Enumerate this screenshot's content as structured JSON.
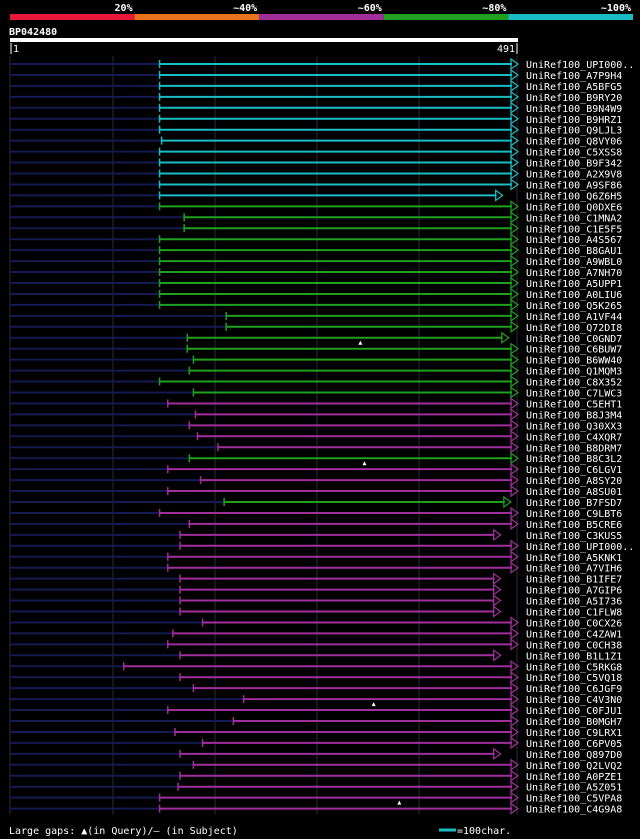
{
  "chart_data": {
    "type": "alignment-overview",
    "query_name": "BP042480",
    "query_start_label": "1",
    "query_end_label": "491",
    "query_length": 491,
    "identity_legend": [
      {
        "label": "20%",
        "color": "#e8173c"
      },
      {
        "label": "~40%",
        "color": "#e8731c"
      },
      {
        "label": "~60%",
        "color": "#a02f9c"
      },
      {
        "label": "~80%",
        "color": "#1fa01f"
      },
      {
        "label": "~100%",
        "color": "#1bbcc4"
      }
    ],
    "footer_left": "Large gaps: ▲(in Query)/– (in Subject)",
    "footer_right": "=100char.",
    "hits": [
      {
        "name": "UniRef100_UPI000..",
        "start": 147,
        "end": 491,
        "identity": "~100%",
        "marker": null
      },
      {
        "name": "UniRef100_A7P9H4",
        "start": 147,
        "end": 491,
        "identity": "~100%",
        "marker": null
      },
      {
        "name": "UniRef100_A5BFG5",
        "start": 147,
        "end": 491,
        "identity": "~100%",
        "marker": null
      },
      {
        "name": "UniRef100_B9RY20",
        "start": 147,
        "end": 491,
        "identity": "~100%",
        "marker": null
      },
      {
        "name": "UniRef100_B9N4W9",
        "start": 147,
        "end": 491,
        "identity": "~100%",
        "marker": null
      },
      {
        "name": "UniRef100_B9HRZ1",
        "start": 147,
        "end": 491,
        "identity": "~100%",
        "marker": null
      },
      {
        "name": "UniRef100_Q9LJL3",
        "start": 147,
        "end": 491,
        "identity": "~100%",
        "marker": null
      },
      {
        "name": "UniRef100_Q8VY06",
        "start": 149,
        "end": 491,
        "identity": "~100%",
        "marker": null
      },
      {
        "name": "UniRef100_C5XSS8",
        "start": 147,
        "end": 491,
        "identity": "~100%",
        "marker": null
      },
      {
        "name": "UniRef100_B9F342",
        "start": 147,
        "end": 491,
        "identity": "~100%",
        "marker": null
      },
      {
        "name": "UniRef100_A2X9V8",
        "start": 147,
        "end": 491,
        "identity": "~100%",
        "marker": null
      },
      {
        "name": "UniRef100_A9SF86",
        "start": 147,
        "end": 491,
        "identity": "~100%",
        "marker": null
      },
      {
        "name": "UniRef100_Q6Z6H5",
        "start": 147,
        "end": 476,
        "identity": "~100%",
        "marker": null
      },
      {
        "name": "UniRef100_Q0DXE6",
        "start": 147,
        "end": 491,
        "identity": "~80%",
        "marker": null
      },
      {
        "name": "UniRef100_C1MNA2",
        "start": 171,
        "end": 491,
        "identity": "~80%",
        "marker": null
      },
      {
        "name": "UniRef100_C1E5F5",
        "start": 171,
        "end": 491,
        "identity": "~80%",
        "marker": null
      },
      {
        "name": "UniRef100_A4S567",
        "start": 147,
        "end": 491,
        "identity": "~80%",
        "marker": null
      },
      {
        "name": "UniRef100_B8GAU1",
        "start": 147,
        "end": 491,
        "identity": "~80%",
        "marker": null
      },
      {
        "name": "UniRef100_A9WBL0",
        "start": 147,
        "end": 491,
        "identity": "~80%",
        "marker": null
      },
      {
        "name": "UniRef100_A7NH70",
        "start": 147,
        "end": 491,
        "identity": "~80%",
        "marker": null
      },
      {
        "name": "UniRef100_A5UPP1",
        "start": 147,
        "end": 491,
        "identity": "~80%",
        "marker": null
      },
      {
        "name": "UniRef100_A0LIU6",
        "start": 147,
        "end": 491,
        "identity": "~80%",
        "marker": null
      },
      {
        "name": "UniRef100_Q5K265",
        "start": 147,
        "end": 491,
        "identity": "~80%",
        "marker": null
      },
      {
        "name": "UniRef100_A1VF44",
        "start": 212,
        "end": 491,
        "identity": "~80%",
        "marker": null
      },
      {
        "name": "UniRef100_Q72DI8",
        "start": 212,
        "end": 491,
        "identity": "~80%",
        "marker": null
      },
      {
        "name": "UniRef100_C0GND7",
        "start": 174,
        "end": 482,
        "identity": "~80%",
        "marker": "query",
        "marker_pos": 343
      },
      {
        "name": "UniRef100_C6BUW7",
        "start": 174,
        "end": 491,
        "identity": "~80%",
        "marker": null
      },
      {
        "name": "UniRef100_B6WW40",
        "start": 180,
        "end": 491,
        "identity": "~80%",
        "marker": null
      },
      {
        "name": "UniRef100_Q1MQM3",
        "start": 176,
        "end": 491,
        "identity": "~80%",
        "marker": null
      },
      {
        "name": "UniRef100_C8X352",
        "start": 147,
        "end": 491,
        "identity": "~80%",
        "marker": null
      },
      {
        "name": "UniRef100_C7LWC3",
        "start": 180,
        "end": 491,
        "identity": "~80%",
        "marker": null
      },
      {
        "name": "UniRef100_C5EHT1",
        "start": 155,
        "end": 491,
        "identity": "~60%",
        "marker": null
      },
      {
        "name": "UniRef100_B8J3M4",
        "start": 182,
        "end": 491,
        "identity": "~60%",
        "marker": null
      },
      {
        "name": "UniRef100_Q30XX3",
        "start": 176,
        "end": 491,
        "identity": "~60%",
        "marker": null
      },
      {
        "name": "UniRef100_C4XQR7",
        "start": 184,
        "end": 491,
        "identity": "~60%",
        "marker": null
      },
      {
        "name": "UniRef100_B8DRM7",
        "start": 204,
        "end": 491,
        "identity": "~60%",
        "marker": null
      },
      {
        "name": "UniRef100_B8C3L2",
        "start": 176,
        "end": 491,
        "identity": "~80%",
        "marker": "query",
        "marker_pos": 347
      },
      {
        "name": "UniRef100_C6LGV1",
        "start": 155,
        "end": 491,
        "identity": "~60%",
        "marker": null
      },
      {
        "name": "UniRef100_A8SY20",
        "start": 187,
        "end": 491,
        "identity": "~60%",
        "marker": null
      },
      {
        "name": "UniRef100_A8SU01",
        "start": 155,
        "end": 491,
        "identity": "~60%",
        "marker": null
      },
      {
        "name": "UniRef100_B7FSD7",
        "start": 210,
        "end": 484,
        "identity": "~80%",
        "marker": null
      },
      {
        "name": "UniRef100_C9LBT6",
        "start": 147,
        "end": 491,
        "identity": "~60%",
        "marker": null
      },
      {
        "name": "UniRef100_B5CRE6",
        "start": 176,
        "end": 491,
        "identity": "~60%",
        "marker": null
      },
      {
        "name": "UniRef100_C3KUS5",
        "start": 167,
        "end": 474,
        "identity": "~60%",
        "marker": null
      },
      {
        "name": "UniRef100_UPI000..",
        "start": 167,
        "end": 491,
        "identity": "~60%",
        "marker": null
      },
      {
        "name": "UniRef100_A5KNK1",
        "start": 155,
        "end": 491,
        "identity": "~60%",
        "marker": null
      },
      {
        "name": "UniRef100_A7VIH6",
        "start": 155,
        "end": 491,
        "identity": "~60%",
        "marker": null
      },
      {
        "name": "UniRef100_B1IFE7",
        "start": 167,
        "end": 474,
        "identity": "~60%",
        "marker": null
      },
      {
        "name": "UniRef100_A7GIP6",
        "start": 167,
        "end": 474,
        "identity": "~60%",
        "marker": null
      },
      {
        "name": "UniRef100_A5I736",
        "start": 167,
        "end": 474,
        "identity": "~60%",
        "marker": null
      },
      {
        "name": "UniRef100_C1FLW8",
        "start": 167,
        "end": 474,
        "identity": "~60%",
        "marker": null
      },
      {
        "name": "UniRef100_C0CX26",
        "start": 189,
        "end": 491,
        "identity": "~60%",
        "marker": null
      },
      {
        "name": "UniRef100_C4ZAW1",
        "start": 160,
        "end": 491,
        "identity": "~60%",
        "marker": null
      },
      {
        "name": "UniRef100_C0CH38",
        "start": 155,
        "end": 491,
        "identity": "~60%",
        "marker": null
      },
      {
        "name": "UniRef100_B1L1Z1",
        "start": 167,
        "end": 474,
        "identity": "~60%",
        "marker": null
      },
      {
        "name": "UniRef100_C5RKG8",
        "start": 112,
        "end": 491,
        "identity": "~60%",
        "marker": null
      },
      {
        "name": "UniRef100_C5VQ18",
        "start": 167,
        "end": 491,
        "identity": "~60%",
        "marker": null
      },
      {
        "name": "UniRef100_C6JGF9",
        "start": 180,
        "end": 491,
        "identity": "~60%",
        "marker": null
      },
      {
        "name": "UniRef100_C4V3N0",
        "start": 229,
        "end": 491,
        "identity": "~60%",
        "marker": "query",
        "marker_pos": 356
      },
      {
        "name": "UniRef100_C0FJU1",
        "start": 155,
        "end": 491,
        "identity": "~60%",
        "marker": null
      },
      {
        "name": "UniRef100_B0MGH7",
        "start": 219,
        "end": 491,
        "identity": "~60%",
        "marker": null
      },
      {
        "name": "UniRef100_C9LRX1",
        "start": 162,
        "end": 491,
        "identity": "~60%",
        "marker": null
      },
      {
        "name": "UniRef100_C6PV05",
        "start": 189,
        "end": 491,
        "identity": "~60%",
        "marker": null
      },
      {
        "name": "UniRef100_Q897D0",
        "start": 167,
        "end": 474,
        "identity": "~60%",
        "marker": null
      },
      {
        "name": "UniRef100_Q2LVQ2",
        "start": 180,
        "end": 491,
        "identity": "~60%",
        "marker": null
      },
      {
        "name": "UniRef100_A0PZE1",
        "start": 167,
        "end": 491,
        "identity": "~60%",
        "marker": null
      },
      {
        "name": "UniRef100_A5Z051",
        "start": 165,
        "end": 491,
        "identity": "~60%",
        "marker": null
      },
      {
        "name": "UniRef100_C5VPA8",
        "start": 147,
        "end": 491,
        "identity": "~60%",
        "marker": "query",
        "marker_pos": 381
      },
      {
        "name": "UniRef100_C4G9A8",
        "start": 147,
        "end": 491,
        "identity": "~60%",
        "marker": null
      }
    ]
  }
}
